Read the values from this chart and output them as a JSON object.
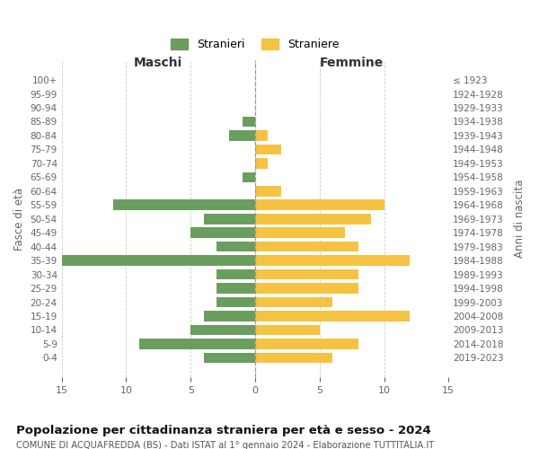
{
  "age_groups": [
    "100+",
    "95-99",
    "90-94",
    "85-89",
    "80-84",
    "75-79",
    "70-74",
    "65-69",
    "60-64",
    "55-59",
    "50-54",
    "45-49",
    "40-44",
    "35-39",
    "30-34",
    "25-29",
    "20-24",
    "15-19",
    "10-14",
    "5-9",
    "0-4"
  ],
  "birth_years": [
    "≤ 1923",
    "1924-1928",
    "1929-1933",
    "1934-1938",
    "1939-1943",
    "1944-1948",
    "1949-1953",
    "1954-1958",
    "1959-1963",
    "1964-1968",
    "1969-1973",
    "1974-1978",
    "1979-1983",
    "1984-1988",
    "1989-1993",
    "1994-1998",
    "1999-2003",
    "2004-2008",
    "2009-2013",
    "2014-2018",
    "2019-2023"
  ],
  "males": [
    0,
    0,
    0,
    1,
    2,
    0,
    0,
    1,
    0,
    11,
    4,
    5,
    3,
    15,
    3,
    3,
    3,
    4,
    5,
    9,
    4
  ],
  "females": [
    0,
    0,
    0,
    0,
    1,
    2,
    1,
    0,
    2,
    10,
    9,
    7,
    8,
    12,
    8,
    8,
    6,
    12,
    5,
    8,
    6
  ],
  "male_color": "#6a9e5e",
  "female_color": "#f5c242",
  "title": "Popolazione per cittadinanza straniera per età e sesso - 2024",
  "subtitle": "COMUNE DI ACQUAFREDDA (BS) - Dati ISTAT al 1° gennaio 2024 - Elaborazione TUTTITALIA.IT",
  "xlabel_left": "Maschi",
  "xlabel_right": "Femmine",
  "ylabel_left": "Fasce di età",
  "ylabel_right": "Anni di nascita",
  "legend_males": "Stranieri",
  "legend_females": "Straniere",
  "xlim": 15,
  "bar_height": 0.75,
  "bg_color": "#ffffff",
  "grid_color": "#cccccc",
  "dashed_line_color": "#999999",
  "axis_label_color": "#666666"
}
